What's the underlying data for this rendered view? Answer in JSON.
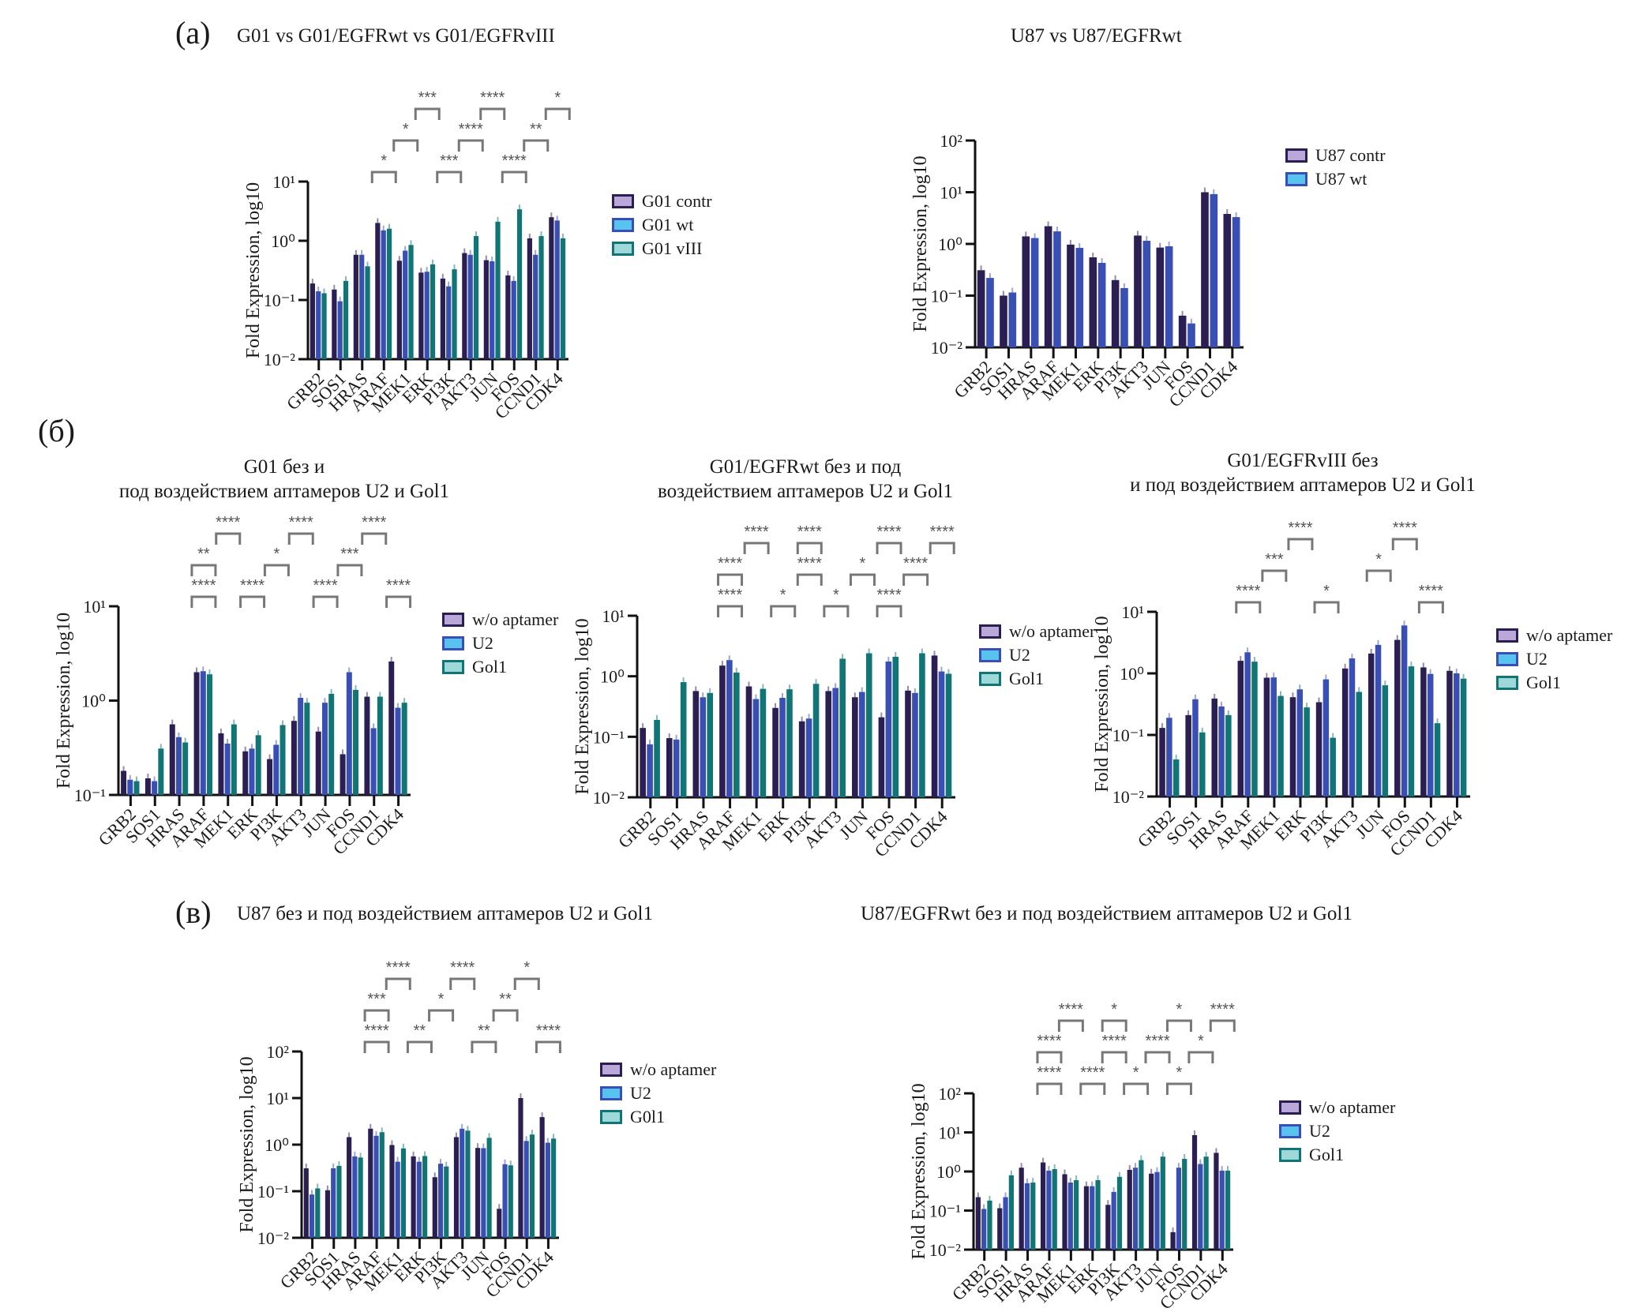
{
  "sections": {
    "a": "(a)",
    "b": "(б)",
    "c": "(в)"
  },
  "series_colors": {
    "dark": "#2b1e52",
    "blue": "#3a4fb4",
    "teal": "#127575"
  },
  "chart_data": [
    {
      "id": "a1",
      "type": "bar",
      "scale": "log",
      "title": "G01 vs G01/EGFRwt vs G01/EGFRvIII",
      "ylabel": "Fold Expression, log10",
      "xlabel": "",
      "ylim_exp": [
        -2,
        1
      ],
      "yticks": [
        "10⁻²",
        "10⁻¹",
        "10⁰",
        "10¹"
      ],
      "categories": [
        "GRB2",
        "SOS1",
        "HRAS",
        "ARAF",
        "MEK1",
        "ERK",
        "PI3K",
        "AKT3",
        "JUN",
        "FOS",
        "CCND1",
        "CDK4"
      ],
      "legend": [
        "G01 contr",
        "G01 wt",
        "G01 vIII"
      ],
      "legend_position": "right",
      "series": [
        {
          "name": "G01 contr",
          "values": [
            0.19,
            0.15,
            0.58,
            2.0,
            0.46,
            0.29,
            0.23,
            0.62,
            0.47,
            0.26,
            1.1,
            2.5
          ]
        },
        {
          "name": "G01 wt",
          "values": [
            0.14,
            0.095,
            0.58,
            1.5,
            0.68,
            0.3,
            0.17,
            0.58,
            0.45,
            0.21,
            0.58,
            2.2
          ]
        },
        {
          "name": "G01 vIII",
          "values": [
            0.13,
            0.21,
            0.37,
            1.6,
            0.85,
            0.4,
            0.33,
            1.2,
            2.1,
            3.4,
            1.2,
            1.1
          ]
        }
      ],
      "annotations": [
        "*",
        "*",
        "***",
        "***",
        "****",
        "****",
        "****",
        "**",
        "*"
      ]
    },
    {
      "id": "a2",
      "type": "bar",
      "scale": "log",
      "title": "U87 vs U87/EGFRwt",
      "ylabel": "Fold Expression, log10",
      "xlabel": "",
      "ylim_exp": [
        -2,
        2
      ],
      "yticks": [
        "10⁻²",
        "10⁻¹",
        "10⁰",
        "10¹",
        "10²"
      ],
      "categories": [
        "GRB2",
        "SOS1",
        "HRAS",
        "ARAF",
        "MEK1",
        "ERK",
        "PI3K",
        "AKT3",
        "JUN",
        "FOS",
        "CCND1",
        "CDK4"
      ],
      "legend": [
        "U87 contr",
        "U87 wt"
      ],
      "legend_position": "right",
      "series": [
        {
          "name": "U87 contr",
          "values": [
            0.31,
            0.1,
            1.4,
            2.2,
            0.97,
            0.55,
            0.2,
            1.45,
            0.85,
            0.041,
            10,
            3.8
          ]
        },
        {
          "name": "U87 wt",
          "values": [
            0.22,
            0.115,
            1.3,
            1.75,
            0.84,
            0.43,
            0.14,
            1.15,
            0.9,
            0.029,
            9.2,
            3.3
          ]
        }
      ],
      "annotations": []
    },
    {
      "id": "b1",
      "type": "bar",
      "scale": "log",
      "title_lines": [
        "G01 без и",
        "под воздействием аптамеров U2 и Gol1"
      ],
      "ylabel": "Fold Expression, log10",
      "xlabel": "",
      "ylim_exp": [
        -1,
        1
      ],
      "yticks": [
        "10⁻¹",
        "10⁰",
        "10¹"
      ],
      "categories": [
        "GRB2",
        "SOS1",
        "HRAS",
        "ARAF",
        "MEK1",
        "ERK",
        "PI3K",
        "AKT3",
        "JUN",
        "FOS",
        "CCND1",
        "CDK4"
      ],
      "legend": [
        "w/o aptamer",
        "U2",
        "Gol1"
      ],
      "legend_position": "right",
      "series": [
        {
          "name": "w/o aptamer",
          "values": [
            0.18,
            0.15,
            0.56,
            2.0,
            0.45,
            0.29,
            0.24,
            0.61,
            0.47,
            0.27,
            1.1,
            2.6
          ]
        },
        {
          "name": "U2",
          "values": [
            0.145,
            0.14,
            0.41,
            2.05,
            0.35,
            0.31,
            0.34,
            1.07,
            0.95,
            2.0,
            0.51,
            0.84
          ]
        },
        {
          "name": "Gol1",
          "values": [
            0.14,
            0.31,
            0.36,
            1.9,
            0.56,
            0.43,
            0.55,
            0.95,
            1.18,
            1.3,
            1.1,
            0.95
          ]
        }
      ],
      "annotations": [
        "****",
        "**",
        "****",
        "****",
        "*",
        "****",
        "****",
        "***",
        "****",
        "****"
      ]
    },
    {
      "id": "b2",
      "type": "bar",
      "scale": "log",
      "title_lines": [
        "G01/EGFRwt без и под",
        "воздействием аптамеров U2 и Gol1"
      ],
      "ylabel": "Fold Expression, log10",
      "xlabel": "",
      "ylim_exp": [
        -2,
        1
      ],
      "yticks": [
        "10⁻²",
        "10⁻¹",
        "10⁰",
        "10¹"
      ],
      "categories": [
        "GRB2",
        "SOS1",
        "HRAS",
        "ARAF",
        "MEK1",
        "ERK",
        "PI3K",
        "AKT3",
        "JUN",
        "FOS",
        "CCND1",
        "CDK4"
      ],
      "legend": [
        "w/o aptamer",
        "U2",
        "Gol1"
      ],
      "legend_position": "right",
      "series": [
        {
          "name": "w/o aptamer",
          "values": [
            0.14,
            0.095,
            0.57,
            1.5,
            0.68,
            0.3,
            0.18,
            0.57,
            0.45,
            0.21,
            0.58,
            2.2
          ]
        },
        {
          "name": "U2",
          "values": [
            0.075,
            0.09,
            0.45,
            1.85,
            0.42,
            0.44,
            0.2,
            0.64,
            0.55,
            1.75,
            0.53,
            1.2
          ]
        },
        {
          "name": "Gol1",
          "values": [
            0.19,
            0.8,
            0.53,
            1.15,
            0.62,
            0.61,
            0.75,
            1.95,
            2.4,
            2.1,
            2.4,
            1.1
          ]
        }
      ],
      "annotations": [
        "****",
        "****",
        "****",
        "*",
        "****",
        "****",
        "*",
        "*",
        "****",
        "****",
        "****",
        "****"
      ]
    },
    {
      "id": "b3",
      "type": "bar",
      "scale": "log",
      "title_lines": [
        "G01/EGFRvIII без",
        "и под воздействием аптамеров U2 и Gol1"
      ],
      "ylabel": "Fold Expression, log10",
      "xlabel": "",
      "ylim_exp": [
        -2,
        1
      ],
      "yticks": [
        "10⁻²",
        "10⁻¹",
        "10⁰",
        "10¹"
      ],
      "categories": [
        "GRB2",
        "SOS1",
        "HRAS",
        "ARAF",
        "MEK1",
        "ERK",
        "PI3K",
        "AKT3",
        "JUN",
        "FOS",
        "CCND1",
        "CDK4"
      ],
      "legend": [
        "w/o aptamer",
        "U2",
        "Gol1"
      ],
      "legend_position": "right",
      "series": [
        {
          "name": "w/o aptamer",
          "values": [
            0.13,
            0.21,
            0.39,
            1.6,
            0.85,
            0.41,
            0.34,
            1.2,
            2.1,
            3.5,
            1.25,
            1.1
          ]
        },
        {
          "name": "U2",
          "values": [
            0.19,
            0.38,
            0.29,
            2.2,
            0.86,
            0.55,
            0.8,
            1.75,
            2.9,
            6.0,
            0.98,
            1.0
          ]
        },
        {
          "name": "Gol1",
          "values": [
            0.04,
            0.11,
            0.21,
            1.55,
            0.43,
            0.28,
            0.09,
            0.5,
            0.64,
            1.3,
            0.155,
            0.82
          ]
        }
      ],
      "annotations": [
        "****",
        "***",
        "****",
        "*",
        "*",
        "****",
        "****"
      ]
    },
    {
      "id": "c1",
      "type": "bar",
      "scale": "log",
      "title": "U87 без и под воздействием аптамеров U2 и Gol1",
      "ylabel": "Fold Expression, log10",
      "xlabel": "",
      "ylim_exp": [
        -2,
        2
      ],
      "yticks": [
        "10⁻²",
        "10⁻¹",
        "10⁰",
        "10¹",
        "10²"
      ],
      "categories": [
        "GRB2",
        "SOS1",
        "HRAS",
        "ARAF",
        "MEK1",
        "ERK",
        "PI3K",
        "AKT3",
        "JUN",
        "FOS",
        "CCND1",
        "CDK4"
      ],
      "legend": [
        "w/o aptamer",
        "U2",
        "G0l1"
      ],
      "legend_position": "right",
      "series": [
        {
          "name": "w/o aptamer",
          "values": [
            0.31,
            0.105,
            1.45,
            2.2,
            0.98,
            0.56,
            0.2,
            1.45,
            0.85,
            0.042,
            10,
            3.9
          ]
        },
        {
          "name": "U2",
          "values": [
            0.085,
            0.31,
            0.56,
            1.55,
            0.43,
            0.43,
            0.39,
            2.2,
            0.84,
            0.38,
            1.2,
            1.1
          ]
        },
        {
          "name": "G0l1",
          "values": [
            0.115,
            0.35,
            0.53,
            1.85,
            0.83,
            0.57,
            0.34,
            2.0,
            1.4,
            0.36,
            1.65,
            1.35
          ]
        }
      ],
      "annotations": [
        "****",
        "***",
        "****",
        "**",
        "*",
        "****",
        "**",
        "**",
        "*",
        "****"
      ]
    },
    {
      "id": "c2",
      "type": "bar",
      "scale": "log",
      "title": "U87/EGFRwt без и под воздействием аптамеров U2 и Gol1",
      "ylabel": "Fold Expression, log10",
      "xlabel": "",
      "ylim_exp": [
        -2,
        2
      ],
      "yticks": [
        "10⁻²",
        "10⁻¹",
        "10⁰",
        "10¹",
        "10²"
      ],
      "categories": [
        "GRB2",
        "SOS1",
        "HRAS",
        "ARAF",
        "MEK1",
        "ERK",
        "PI3K",
        "AKT3",
        "JUN",
        "FOS",
        "CCND1",
        "CDK4"
      ],
      "legend": [
        "w/o aptamer",
        "U2",
        "Gol1"
      ],
      "legend_position": "right",
      "series": [
        {
          "name": "w/o aptamer",
          "values": [
            0.22,
            0.115,
            1.25,
            1.7,
            0.85,
            0.42,
            0.14,
            1.1,
            0.88,
            0.028,
            8.5,
            3.0
          ]
        },
        {
          "name": "U2",
          "values": [
            0.11,
            0.22,
            0.5,
            1.05,
            0.52,
            0.42,
            0.3,
            1.25,
            0.97,
            1.25,
            1.55,
            1.05
          ]
        },
        {
          "name": "Gol1",
          "values": [
            0.18,
            0.8,
            0.52,
            1.15,
            0.6,
            0.6,
            0.73,
            1.95,
            2.4,
            2.1,
            2.4,
            1.05
          ]
        }
      ],
      "annotations": [
        "****",
        "****",
        "****",
        "****",
        "****",
        "*",
        "*",
        "****",
        "*",
        "*",
        "*",
        "****"
      ]
    }
  ]
}
